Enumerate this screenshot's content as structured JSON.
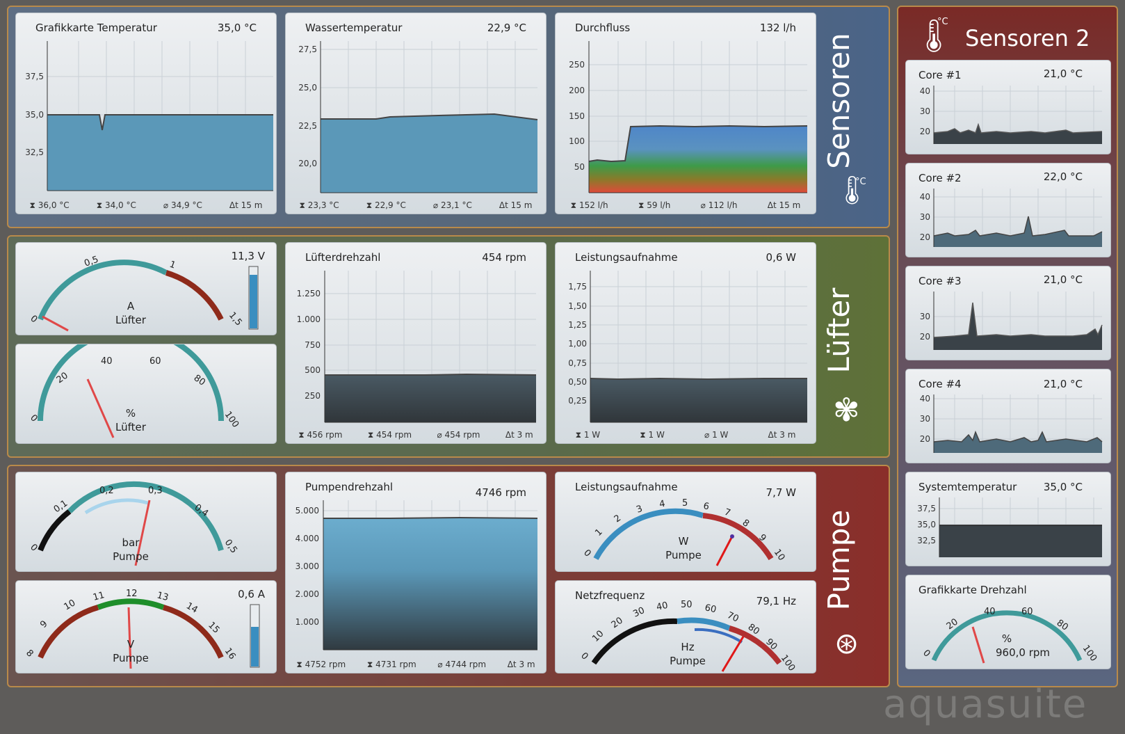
{
  "groups": {
    "sensors": "Sensoren",
    "fans": "Lüfter",
    "pump": "Pumpe",
    "sensors2": "Sensoren 2"
  },
  "icons": {
    "thermometer": "thermometer-icon",
    "fan": "fan-icon",
    "pump": "pump-icon",
    "degree_label": "°C"
  },
  "panels": {
    "gpu_temp": {
      "title": "Grafikkarte Temperatur",
      "value": "35,0 °C",
      "stats": [
        "36,0 °C",
        "34,0 °C",
        "34,9 °C",
        "15 m"
      ],
      "ticks": [
        "37,5",
        "35,0",
        "32,5"
      ]
    },
    "water_temp": {
      "title": "Wassertemperatur",
      "value": "22,9 °C",
      "stats": [
        "23,3 °C",
        "22,9 °C",
        "23,1 °C",
        "15 m"
      ],
      "ticks": [
        "27,5",
        "25,0",
        "22,5",
        "20,0"
      ]
    },
    "flow": {
      "title": "Durchfluss",
      "value": "132 l/h",
      "stats": [
        "152 l/h",
        "59 l/h",
        "112 l/h",
        "15 m"
      ],
      "ticks": [
        "250",
        "200",
        "150",
        "100",
        "50"
      ]
    },
    "fan_voltage_gauge": {
      "unit": "A",
      "label": "Lüfter",
      "value": "11,3 V",
      "ticks": [
        "0",
        "0,5",
        "1",
        "1,5"
      ]
    },
    "fan_percent_gauge": {
      "unit": "%",
      "label": "Lüfter",
      "ticks": [
        "0",
        "20",
        "40",
        "60",
        "80",
        "100"
      ]
    },
    "fan_rpm": {
      "title": "Lüfterdrehzahl",
      "value": "454 rpm",
      "stats": [
        "456 rpm",
        "454 rpm",
        "454 rpm",
        "3 m"
      ],
      "ticks": [
        "1.250",
        "1.000",
        "750",
        "500",
        "250"
      ]
    },
    "fan_power": {
      "title": "Leistungsaufnahme",
      "value": "0,6 W",
      "stats": [
        "1 W",
        "1 W",
        "1 W",
        "3 m"
      ],
      "ticks": [
        "1,75",
        "1,50",
        "1,25",
        "1,00",
        "0,75",
        "0,50",
        "0,25"
      ]
    },
    "pump_pressure_gauge": {
      "unit": "bar",
      "label": "Pumpe",
      "ticks": [
        "0",
        "0,1",
        "0,2",
        "0,3",
        "0,4",
        "0,5"
      ]
    },
    "pump_voltage_gauge": {
      "unit": "V",
      "label": "Pumpe",
      "value": "0,6 A",
      "ticks": [
        "8",
        "9",
        "10",
        "11",
        "12",
        "13",
        "14",
        "15",
        "16"
      ]
    },
    "pump_rpm": {
      "title": "Pumpendrehzahl",
      "value": "4746 rpm",
      "stats": [
        "4752 rpm",
        "4731 rpm",
        "4744 rpm",
        "3 m"
      ],
      "ticks": [
        "5.000",
        "4.000",
        "3.000",
        "2.000",
        "1.000"
      ]
    },
    "pump_power_gauge": {
      "title": "Leistungsaufnahme",
      "value": "7,7 W",
      "unit": "W",
      "label": "Pumpe",
      "ticks": [
        "0",
        "1",
        "2",
        "3",
        "4",
        "5",
        "6",
        "7",
        "8",
        "9",
        "10"
      ]
    },
    "pump_freq_gauge": {
      "title": "Netzfrequenz",
      "value": "79,1 Hz",
      "unit": "Hz",
      "label": "Pumpe",
      "ticks": [
        "0",
        "10",
        "20",
        "30",
        "40",
        "50",
        "60",
        "70",
        "80",
        "90",
        "100"
      ]
    }
  },
  "side": {
    "core1": {
      "title": "Core #1",
      "value": "21,0 °C",
      "ticks": [
        "40",
        "30",
        "20"
      ]
    },
    "core2": {
      "title": "Core #2",
      "value": "22,0 °C",
      "ticks": [
        "40",
        "30",
        "20"
      ]
    },
    "core3": {
      "title": "Core #3",
      "value": "21,0 °C",
      "ticks": [
        "30",
        "20"
      ]
    },
    "core4": {
      "title": "Core #4",
      "value": "21,0 °C",
      "ticks": [
        "40",
        "30",
        "20"
      ]
    },
    "systemp": {
      "title": "Systemtemperatur",
      "value": "35,0 °C",
      "ticks": [
        "37,5",
        "35,0",
        "32,5"
      ]
    },
    "gpu_rpm": {
      "title": "Grafikkarte Drehzahl",
      "unit": "%",
      "value": "960,0 rpm",
      "ticks": [
        "0",
        "20",
        "40",
        "60",
        "80",
        "100"
      ]
    }
  },
  "watermark": "aquasuite",
  "colors": {
    "area_blue": "#5b98b8",
    "area_dark": "#3e4a52",
    "teal": "#3f9a9a",
    "red": "#8e2a1a",
    "needle": "#e04848"
  }
}
